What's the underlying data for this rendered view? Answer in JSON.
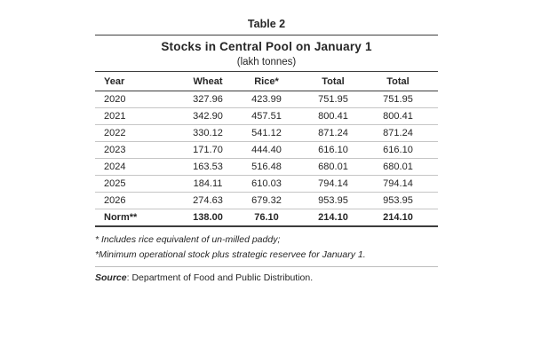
{
  "table": {
    "label": "Table 2",
    "title": "Stocks in Central Pool on January 1",
    "subtitle": "(lakh tonnes)",
    "columns": [
      "Year",
      "Wheat",
      "Rice*",
      "Total",
      "Total"
    ],
    "rows": [
      [
        "2020",
        "327.96",
        "423.99",
        "751.95",
        "751.95"
      ],
      [
        "2021",
        "342.90",
        "457.51",
        "800.41",
        "800.41"
      ],
      [
        "2022",
        "330.12",
        "541.12",
        "871.24",
        "871.24"
      ],
      [
        "2023",
        "171.70",
        "444.40",
        "616.10",
        "616.10"
      ],
      [
        "2024",
        "163.53",
        "516.48",
        "680.01",
        "680.01"
      ],
      [
        "2025",
        "184.11",
        "610.03",
        "794.14",
        "794.14"
      ],
      [
        "2026",
        "274.63",
        "679.32",
        "953.95",
        "953.95"
      ]
    ],
    "norm": [
      "Norm**",
      "138.00",
      "76.10",
      "214.10",
      "214.10"
    ],
    "footnotes": [
      "* Includes rice equivalent of un-milled paddy;",
      "*Minimum operational stock plus strategic reservee for January 1."
    ],
    "source_label": "Source",
    "source_rest": ": Department of Food and Public Distribution."
  },
  "colors": {
    "text": "#262626",
    "rule_dark": "#3d3d3d",
    "rule_light": "#bdbdbd",
    "background": "#ffffff"
  }
}
